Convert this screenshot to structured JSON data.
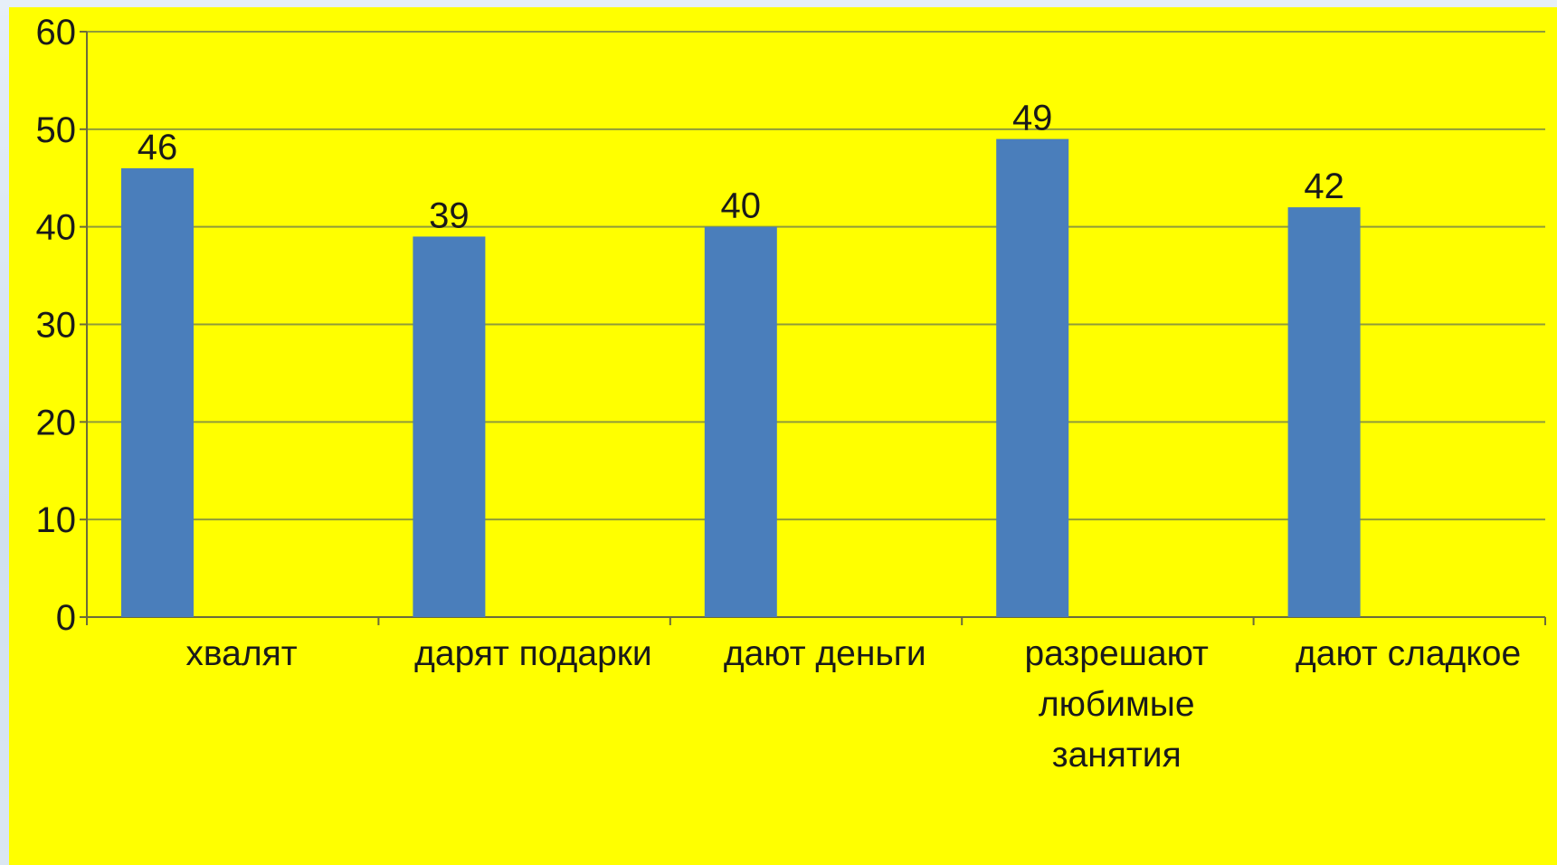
{
  "chart_data": {
    "type": "bar",
    "categories": [
      [
        "хвалят"
      ],
      [
        "дарят подарки"
      ],
      [
        "дают деньги"
      ],
      [
        "разрешают",
        "любимые",
        "занятия"
      ],
      [
        "дают сладкое"
      ]
    ],
    "values": [
      46,
      39,
      40,
      49,
      42
    ],
    "data_labels": [
      "46",
      "39",
      "40",
      "49",
      "42"
    ],
    "ylim": [
      0,
      60
    ],
    "yticks": [
      "0",
      "10",
      "20",
      "30",
      "40",
      "50",
      "60"
    ],
    "grid": true,
    "legend": "none",
    "colors": {
      "background": "#ffff00",
      "bar": "#4a7ebb",
      "gridline": "#8f9b3a",
      "axis": "#6b6b3a"
    }
  }
}
